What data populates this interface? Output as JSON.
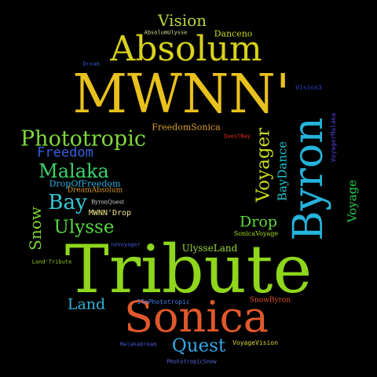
{
  "cloud": {
    "background": "#000000",
    "words": [
      {
        "text": "Tribute",
        "color": "#8fd61c"
      },
      {
        "text": "MWNN'",
        "color": "#e8c11c"
      },
      {
        "text": "Sonica",
        "color": "#e0582a"
      },
      {
        "text": "Byron",
        "color": "#24b4dc"
      },
      {
        "text": "Absolum",
        "color": "#d8d21c"
      },
      {
        "text": "Phototropic",
        "color": "#7fd83c"
      },
      {
        "text": "Voyager",
        "color": "#c8d81c"
      },
      {
        "text": "Quest",
        "color": "#38a8e8"
      },
      {
        "text": "Bay",
        "color": "#38c8d8"
      },
      {
        "text": "Malaka",
        "color": "#3cd66c"
      },
      {
        "text": "Ulysse",
        "color": "#5ad844"
      },
      {
        "text": "Vision",
        "color": "#b8d43a"
      },
      {
        "text": "Land",
        "color": "#30b4d8"
      },
      {
        "text": "Freedom",
        "color": "#3460e0"
      },
      {
        "text": "Snow",
        "color": "#7ad42c"
      },
      {
        "text": "Drop",
        "color": "#5ed838"
      },
      {
        "text": "BayDance",
        "color": "#1ec4d0"
      },
      {
        "text": "Voyage",
        "color": "#28d054"
      },
      {
        "text": "Danceno",
        "color": "#c8d81c"
      },
      {
        "text": "FreedomSonica",
        "color": "#e0a028"
      },
      {
        "text": "DropOfFreedom",
        "color": "#28b0e0"
      },
      {
        "text": "UlysseLand",
        "color": "#9cd63c"
      },
      {
        "text": "MWNN'Drop",
        "color": "#f0e68c"
      },
      {
        "text": "DreamAbsolum",
        "color": "#d89a2a"
      },
      {
        "text": "SnowByron",
        "color": "#e0502a"
      },
      {
        "text": "3ToPhototropic",
        "color": "#4080e8"
      },
      {
        "text": "SonicaVoyage",
        "color": "#a8d820"
      },
      {
        "text": "VoyageVision",
        "color": "#d8d83a"
      },
      {
        "text": "PhototropicSnow",
        "color": "#5a6ae8"
      },
      {
        "text": "MalakaDream",
        "color": "#4a58d8"
      },
      {
        "text": "noVoyager",
        "color": "#4858d8"
      },
      {
        "text": "ByronQuest",
        "color": "#d8d8d8"
      },
      {
        "text": "Land'Tribute",
        "color": "#8cc820"
      },
      {
        "text": "VoyagerMalaka",
        "color": "#5040d8"
      },
      {
        "text": "Vision3",
        "color": "#3040c8"
      },
      {
        "text": "QuestBay",
        "color": "#e0301c"
      },
      {
        "text": "AbsolumUlysse",
        "color": "#d8d8a0"
      },
      {
        "text": "Dream",
        "color": "#3858c8"
      }
    ]
  }
}
